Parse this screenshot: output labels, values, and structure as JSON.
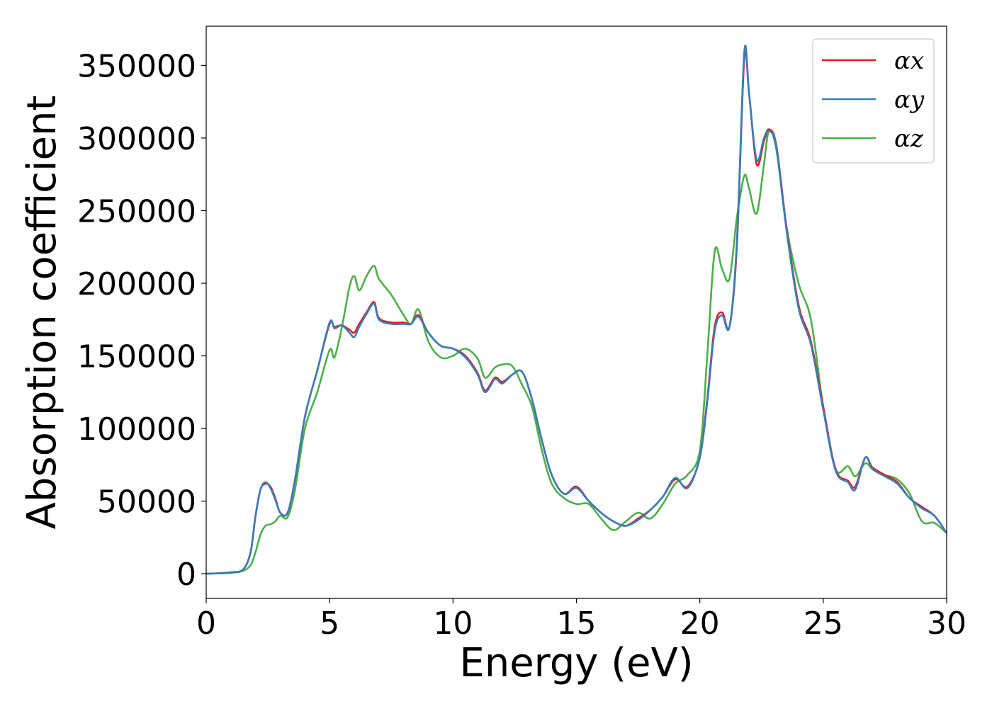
{
  "chart_data": {
    "type": "line",
    "title": "",
    "xlabel": "Energy (eV)",
    "ylabel": "Absorption coefficient",
    "xlim": [
      0,
      30
    ],
    "ylim": [
      -17000,
      377000
    ],
    "xticks": [
      0,
      5,
      10,
      15,
      20,
      25,
      30
    ],
    "yticks": [
      0,
      50000,
      100000,
      150000,
      200000,
      250000,
      300000,
      350000
    ],
    "grid": false,
    "legend_position": "top-right",
    "x": [
      0,
      0.5,
      1,
      1.5,
      1.8,
      2,
      2.2,
      2.4,
      2.6,
      2.8,
      3,
      3.3,
      3.6,
      4,
      4.5,
      5,
      5.2,
      5.5,
      5.8,
      6,
      6.2,
      6.5,
      6.8,
      7,
      7.5,
      8,
      8.3,
      8.6,
      9,
      9.5,
      10,
      10.5,
      11,
      11.3,
      11.7,
      12,
      12.4,
      12.8,
      13.2,
      13.6,
      14,
      14.5,
      15,
      15.5,
      16,
      16.5,
      17,
      17.5,
      18,
      18.5,
      19,
      19.5,
      20,
      20.3,
      20.6,
      20.9,
      21.2,
      21.5,
      21.8,
      22,
      22.3,
      22.6,
      22.8,
      23.1,
      23.5,
      24,
      24.5,
      25,
      25.5,
      26,
      26.3,
      26.7,
      27,
      27.5,
      28,
      28.5,
      29,
      29.5,
      30
    ],
    "series": [
      {
        "name": "αx",
        "color": "#e41a1c",
        "values": [
          0,
          300,
          1000,
          3000,
          15000,
          40000,
          58000,
          62000,
          60000,
          52000,
          42000,
          42000,
          65000,
          108000,
          140000,
          172000,
          170000,
          171000,
          168000,
          166000,
          172000,
          180000,
          187000,
          176000,
          173000,
          173000,
          172000,
          178000,
          166000,
          157000,
          155000,
          150000,
          138000,
          126000,
          135000,
          132000,
          137000,
          139000,
          120000,
          92000,
          68000,
          55000,
          60000,
          50000,
          42000,
          36000,
          33000,
          38000,
          44000,
          53000,
          65000,
          60000,
          80000,
          120000,
          170000,
          180000,
          170000,
          225000,
          355000,
          330000,
          282000,
          298000,
          306000,
          295000,
          240000,
          185000,
          160000,
          115000,
          72000,
          64000,
          60000,
          80000,
          73000,
          68000,
          63000,
          52000,
          46000,
          40000,
          28000
        ]
      },
      {
        "name": "αy",
        "color": "#377eb8",
        "values": [
          0,
          300,
          1000,
          3000,
          15000,
          40000,
          58000,
          63000,
          59000,
          51000,
          42000,
          42000,
          65000,
          108000,
          140000,
          173000,
          169000,
          171000,
          166000,
          163000,
          170000,
          179000,
          186000,
          175000,
          172000,
          172000,
          172000,
          177000,
          166000,
          157000,
          155000,
          149000,
          137000,
          125000,
          134000,
          131000,
          137000,
          139000,
          120000,
          92000,
          68000,
          55000,
          59000,
          50000,
          42000,
          36000,
          33000,
          37000,
          44000,
          53000,
          66000,
          59000,
          80000,
          118000,
          167000,
          178000,
          170000,
          228000,
          359000,
          330000,
          285000,
          300000,
          305000,
          294000,
          238000,
          183000,
          158000,
          113000,
          71000,
          63000,
          58000,
          80000,
          72000,
          67000,
          62000,
          52000,
          45000,
          40000,
          28000
        ]
      },
      {
        "name": "αz",
        "color": "#4daf4a",
        "values": [
          0,
          200,
          500,
          2000,
          6000,
          15000,
          27000,
          33000,
          34000,
          36000,
          40000,
          39000,
          58000,
          100000,
          125000,
          154000,
          149000,
          170000,
          197000,
          205000,
          195000,
          205000,
          212000,
          203000,
          192000,
          178000,
          172000,
          182000,
          160000,
          149000,
          150000,
          155000,
          148000,
          135000,
          142000,
          144000,
          143000,
          130000,
          115000,
          85000,
          62000,
          52000,
          48000,
          48000,
          38000,
          30000,
          36000,
          42000,
          38000,
          48000,
          62000,
          68000,
          85000,
          150000,
          222000,
          210000,
          203000,
          245000,
          274000,
          265000,
          248000,
          282000,
          305000,
          292000,
          240000,
          200000,
          175000,
          115000,
          72000,
          74000,
          67000,
          76000,
          72000,
          68000,
          65000,
          55000,
          36000,
          35000,
          28000
        ]
      }
    ]
  }
}
